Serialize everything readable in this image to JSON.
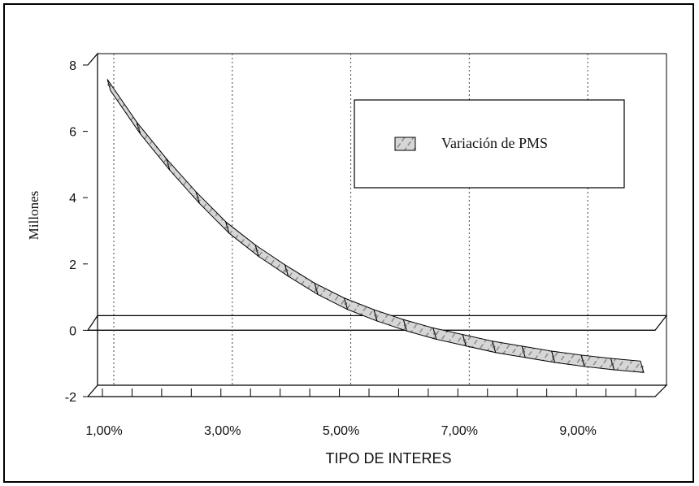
{
  "chart_data": {
    "type": "area",
    "title": "",
    "xlabel": "TIPO DE INTERES",
    "ylabel": "Millones",
    "ylim": [
      -2,
      8
    ],
    "yticks": [
      "8",
      "6",
      "4",
      "2",
      "0",
      "-2"
    ],
    "xtick_labels": [
      "1,00%",
      "3,00%",
      "5,00%",
      "7,00%",
      "9,00%"
    ],
    "x": [
      1.0,
      1.5,
      2.0,
      2.5,
      3.0,
      3.5,
      4.0,
      4.5,
      5.0,
      5.5,
      6.0,
      6.5,
      7.0,
      7.5,
      8.0,
      8.5,
      9.0,
      9.5,
      10.0
    ],
    "series": [
      {
        "name": "Variación de PMS",
        "values": [
          7.4,
          6.1,
          5.0,
          4.0,
          3.1,
          2.4,
          1.8,
          1.25,
          0.8,
          0.45,
          0.15,
          -0.1,
          -0.3,
          -0.5,
          -0.65,
          -0.8,
          -0.92,
          -1.02,
          -1.1
        ]
      }
    ],
    "legend_position": "top-right",
    "grid": "vertical dotted",
    "style": "3d ribbon"
  },
  "colors": {
    "ribbon_fill": "#cfcfcf",
    "ribbon_hatch": "#8a8a8a",
    "axis": "#000000",
    "grid": "#444444"
  }
}
